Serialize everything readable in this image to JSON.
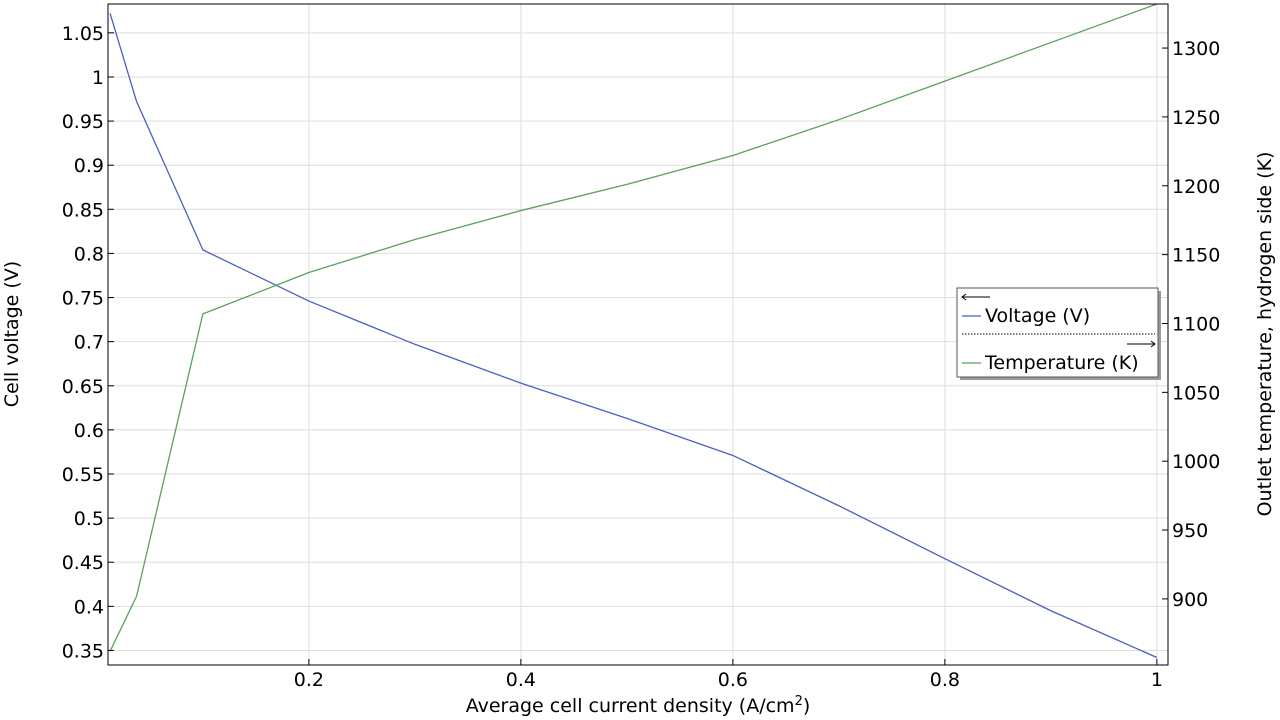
{
  "chart_data": {
    "type": "line",
    "xlabel": "Average cell current density  (A/cm",
    "xlabel_sup": "2",
    "xlabel_close": ")",
    "ylabel_left": "Cell voltage (V)",
    "ylabel_right": "Outlet temperature, hydrogen side (K)",
    "xlim": [
      0.0105,
      1.0105
    ],
    "ylim_left": [
      0.3335,
      1.0827
    ],
    "ylim_right": [
      852,
      1332
    ],
    "x_ticks": [
      0.2,
      0.4,
      0.6,
      0.8,
      1
    ],
    "x_tick_labels": [
      "0.2",
      "0.4",
      "0.6",
      "0.8",
      "1"
    ],
    "y_left_ticks": [
      0.35,
      0.4,
      0.45,
      0.5,
      0.55,
      0.6,
      0.65,
      0.7,
      0.75,
      0.8,
      0.85,
      0.9,
      0.95,
      1,
      1.05
    ],
    "y_left_tick_labels": [
      "0.35",
      "0.4",
      "0.45",
      "0.5",
      "0.55",
      "0.6",
      "0.65",
      "0.7",
      "0.75",
      "0.8",
      "0.85",
      "0.9",
      "0.95",
      "1",
      "1.05"
    ],
    "y_right_ticks": [
      900,
      950,
      1000,
      1050,
      1100,
      1150,
      1200,
      1250,
      1300
    ],
    "y_right_tick_labels": [
      "900",
      "950",
      "1000",
      "1050",
      "1100",
      "1150",
      "1200",
      "1250",
      "1300"
    ],
    "grid": true,
    "legend_position": "right",
    "series": [
      {
        "name": "Voltage (V)",
        "axis": "left",
        "color": "#4a5fc1",
        "x": [
          0.0125,
          0.0375,
          0.1,
          0.2,
          0.3,
          0.4,
          0.5,
          0.6,
          0.7,
          0.8,
          0.9,
          1.0
        ],
        "y": [
          1.072,
          0.972,
          0.804,
          0.746,
          0.697,
          0.653,
          0.613,
          0.571,
          0.514,
          0.454,
          0.395,
          0.342
        ]
      },
      {
        "name": "Temperature (K)",
        "axis": "right",
        "color": "#5aa25a",
        "x": [
          0.0125,
          0.0375,
          0.1,
          0.2,
          0.3,
          0.4,
          0.5,
          0.6,
          0.7,
          0.8,
          0.9,
          1.0
        ],
        "y": [
          862,
          902,
          1107,
          1137,
          1161,
          1182,
          1201,
          1222,
          1248,
          1276,
          1304,
          1332
        ]
      }
    ]
  }
}
